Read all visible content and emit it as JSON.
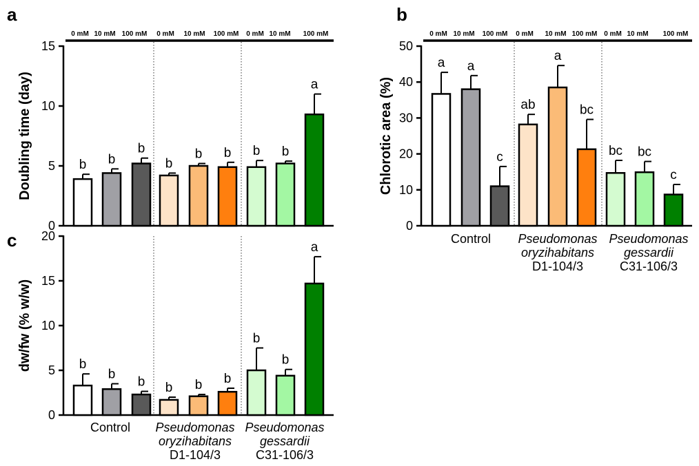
{
  "colors": {
    "control": [
      "#ffffff",
      "#a0a0a5",
      "#595959"
    ],
    "oryzihabitans": [
      "#fde3c8",
      "#fbbb77",
      "#ff7f0e"
    ],
    "gessardii": [
      "#d4fbd0",
      "#a3f7a3",
      "#008000"
    ]
  },
  "chart_data": [
    {
      "panel": "a",
      "type": "bar",
      "ylabel": "Doubling time (day)",
      "ylim": [
        0,
        15
      ],
      "yticks": [
        "0",
        "5",
        "10",
        "15"
      ],
      "treatments": [
        "0 mM",
        "10 mM",
        "100 mM"
      ],
      "groups": [
        {
          "label_lines": [],
          "concentration_labels": [
            "0 mM",
            "10 mM",
            "100 mM"
          ],
          "values": [
            3.9,
            4.4,
            5.2
          ],
          "errors": [
            0.4,
            0.35,
            0.45
          ],
          "letters": [
            "b",
            "b",
            "b"
          ]
        },
        {
          "label_lines": [],
          "concentration_labels": [
            "0 mM",
            "10 mM",
            "100 mM"
          ],
          "values": [
            4.2,
            5.0,
            4.9
          ],
          "errors": [
            0.2,
            0.2,
            0.4
          ],
          "letters": [
            "b",
            "b",
            "b"
          ]
        },
        {
          "label_lines": [],
          "concentration_labels": [
            "0 mM",
            "10 mM",
            "100 mM"
          ],
          "values": [
            4.9,
            5.2,
            9.3
          ],
          "errors": [
            0.55,
            0.2,
            1.7
          ],
          "letters": [
            "b",
            "b",
            "a"
          ]
        }
      ]
    },
    {
      "panel": "b",
      "type": "bar",
      "ylabel": "Chlorotic area (%)",
      "ylim": [
        0,
        50
      ],
      "yticks": [
        "0",
        "10",
        "20",
        "30",
        "40",
        "50"
      ],
      "treatments": [
        "0 mM",
        "10 mM",
        "100 mM"
      ],
      "groups": [
        {
          "label_lines": [
            "Control"
          ],
          "concentration_labels": [
            "0 mM",
            "10 mM",
            "100 mM"
          ],
          "values": [
            36.7,
            38.0,
            11.0
          ],
          "errors": [
            6.0,
            3.8,
            5.5
          ],
          "letters": [
            "a",
            "a",
            "c"
          ]
        },
        {
          "label_lines": [
            "Pseudomonas",
            "oryzihabitans",
            "D1-104/3"
          ],
          "concentration_labels": [
            "0 mM",
            "10 mM",
            "100 mM"
          ],
          "values": [
            28.2,
            38.5,
            21.3
          ],
          "errors": [
            2.8,
            6.1,
            8.3
          ],
          "letters": [
            "ab",
            "a",
            "bc"
          ]
        },
        {
          "label_lines": [
            "Pseudomonas",
            "gessardii",
            "C31-106/3"
          ],
          "concentration_labels": [
            "0 mM",
            "10 mM",
            "100 mM"
          ],
          "values": [
            14.7,
            14.9,
            8.7
          ],
          "errors": [
            3.5,
            3.0,
            2.8
          ],
          "letters": [
            "bc",
            "bc",
            "c"
          ]
        }
      ]
    },
    {
      "panel": "c",
      "type": "bar",
      "ylabel": "dw/fw (% w/w)",
      "ylim": [
        0,
        20
      ],
      "yticks": [
        "0",
        "5",
        "10",
        "15",
        "20"
      ],
      "treatments": [
        "0 mM",
        "10 mM",
        "100 mM"
      ],
      "groups": [
        {
          "label_lines": [
            "Control"
          ],
          "concentration_labels": [],
          "values": [
            3.3,
            2.9,
            2.3
          ],
          "errors": [
            1.3,
            0.6,
            0.35
          ],
          "letters": [
            "b",
            "b",
            "b"
          ]
        },
        {
          "label_lines": [
            "Pseudomonas",
            "oryzihabitans",
            "D1-104/3"
          ],
          "concentration_labels": [],
          "values": [
            1.7,
            2.1,
            2.6
          ],
          "errors": [
            0.3,
            0.2,
            0.4
          ],
          "letters": [
            "b",
            "b",
            "b"
          ]
        },
        {
          "label_lines": [
            "Pseudomonas",
            "gessardii",
            "C31-106/3"
          ],
          "concentration_labels": [],
          "values": [
            5.0,
            4.4,
            14.7
          ],
          "errors": [
            2.5,
            0.7,
            3.0
          ],
          "letters": [
            "b",
            "b",
            "a"
          ]
        }
      ]
    }
  ]
}
